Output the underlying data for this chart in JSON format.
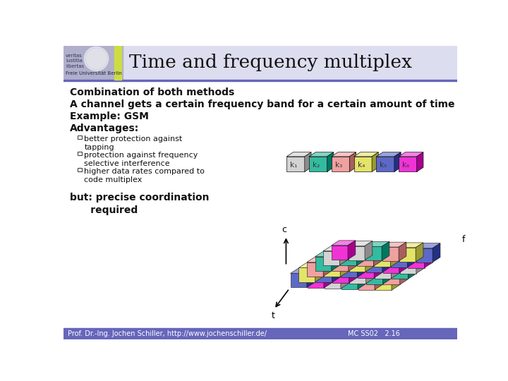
{
  "title": "Time and frequency multiplex",
  "bg_color": "#ffffff",
  "header_bg": "#ddddf0",
  "header_accent": "#c8c8e8",
  "header_stripe_color": "#ccdd44",
  "header_bar_bottom": "#6666bb",
  "logo_bg": "#b0b0cc",
  "text_lines": [
    "Combination of both methods",
    "A channel gets a certain frequency band for a certain amount of time",
    "Example: GSM",
    "Advantages:"
  ],
  "bullets": [
    "better protection against\ntapping",
    "protection against frequency\nselective interference",
    "higher data rates compared to\ncode multiplex"
  ],
  "but_text": "but: precise coordination\n      required",
  "footer_left": "Prof. Dr.-Ing. Jochen Schiller, http://www.jochenschiller.de/",
  "footer_right": "MC SS02   2.16",
  "channel_colors": [
    "#c8c8c8",
    "#00aa88",
    "#ee8888",
    "#dddd44",
    "#3344bb",
    "#ee00cc"
  ],
  "channel_labels": [
    "k₁",
    "k₂",
    "k₃",
    "k₄",
    "k₅",
    "k₆"
  ],
  "grid_rows": 6,
  "grid_cols": 6,
  "color_grid": [
    [
      4,
      5,
      0,
      1,
      2,
      3
    ],
    [
      3,
      4,
      5,
      0,
      1,
      2
    ],
    [
      2,
      3,
      4,
      5,
      0,
      1
    ],
    [
      1,
      2,
      3,
      4,
      5,
      0
    ],
    [
      0,
      1,
      2,
      3,
      4,
      5
    ],
    [
      5,
      0,
      1,
      2,
      3,
      4
    ]
  ]
}
